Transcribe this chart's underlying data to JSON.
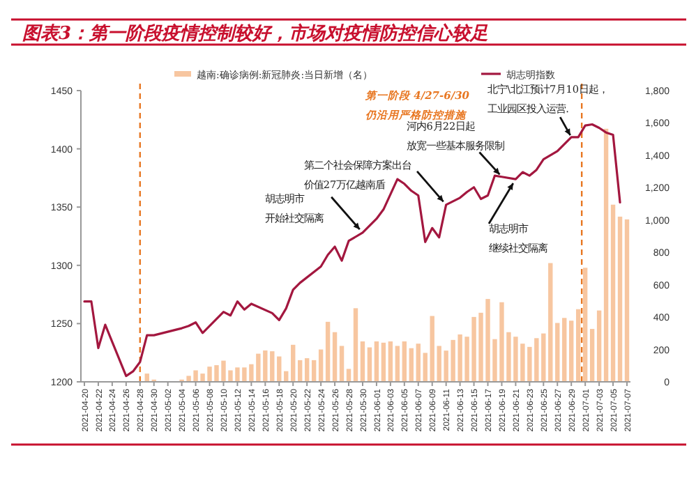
{
  "chart_data": {
    "type": "bar",
    "title": "图表3：第一阶段疫情控制较好，市场对疫情防控信心较足",
    "x": [
      "2021-04-20",
      "2021-04-21",
      "2021-04-22",
      "2021-04-23",
      "2021-04-24",
      "2021-04-25",
      "2021-04-26",
      "2021-04-27",
      "2021-04-28",
      "2021-04-29",
      "2021-04-30",
      "2021-05-01",
      "2021-05-02",
      "2021-05-03",
      "2021-05-04",
      "2021-05-05",
      "2021-05-06",
      "2021-05-07",
      "2021-05-08",
      "2021-05-09",
      "2021-05-10",
      "2021-05-11",
      "2021-05-12",
      "2021-05-13",
      "2021-05-14",
      "2021-05-15",
      "2021-05-16",
      "2021-05-17",
      "2021-05-18",
      "2021-05-19",
      "2021-05-20",
      "2021-05-21",
      "2021-05-22",
      "2021-05-23",
      "2021-05-24",
      "2021-05-25",
      "2021-05-26",
      "2021-05-27",
      "2021-05-28",
      "2021-05-29",
      "2021-05-30",
      "2021-05-31",
      "2021-06-01",
      "2021-06-02",
      "2021-06-03",
      "2021-06-04",
      "2021-06-05",
      "2021-06-06",
      "2021-06-07",
      "2021-06-08",
      "2021-06-09",
      "2021-06-10",
      "2021-06-11",
      "2021-06-12",
      "2021-06-13",
      "2021-06-14",
      "2021-06-15",
      "2021-06-16",
      "2021-06-17",
      "2021-06-18",
      "2021-06-19",
      "2021-06-20",
      "2021-06-21",
      "2021-06-22",
      "2021-06-23",
      "2021-06-24",
      "2021-06-25",
      "2021-06-26",
      "2021-06-27",
      "2021-06-28",
      "2021-06-29",
      "2021-06-30",
      "2021-07-01",
      "2021-07-02",
      "2021-07-03",
      "2021-07-04",
      "2021-07-05",
      "2021-07-06",
      "2021-07-07"
    ],
    "series": [
      {
        "name": "越南:确诊病例:新冠肺炎:当日新增（名）",
        "color": "#f7c6a0",
        "axis": "y2",
        "values": [
          null,
          null,
          null,
          null,
          null,
          null,
          null,
          null,
          null,
          51,
          14,
          null,
          null,
          null,
          14,
          37,
          71,
          51,
          94,
          103,
          131,
          71,
          89,
          89,
          109,
          174,
          194,
          189,
          157,
          66,
          229,
          134,
          146,
          134,
          200,
          371,
          307,
          222,
          80,
          455,
          250,
          213,
          250,
          242,
          250,
          222,
          250,
          208,
          236,
          179,
          407,
          222,
          193,
          259,
          293,
          279,
          401,
          427,
          512,
          264,
          492,
          307,
          279,
          236,
          216,
          270,
          299,
          734,
          364,
          395,
          378,
          449,
          705,
          327,
          441,
          1564,
          1095,
          1021,
          1004
        ]
      },
      {
        "type": "line",
        "name": "胡志明指数",
        "color": "#a3173f",
        "axis": "y",
        "values": [
          1269,
          1269,
          1229,
          1249,
          null,
          null,
          1205,
          1209,
          1217,
          1240,
          1240,
          null,
          null,
          null,
          1246,
          1248,
          1251,
          1242,
          null,
          null,
          1260,
          1257,
          1269,
          1262,
          1267,
          null,
          null,
          1259,
          1253,
          1263,
          1279,
          1285,
          null,
          null,
          1299,
          1309,
          1316,
          1304,
          1321,
          null,
          1328,
          1334,
          1340,
          1348,
          null,
          1374,
          1370,
          1364,
          1360,
          1320,
          1332,
          1324,
          1352,
          null,
          1358,
          1363,
          1367,
          1357,
          1360,
          1377,
          1376,
          null,
          1374,
          1380,
          1377,
          1382,
          1391,
          null,
          1398,
          1404,
          1410,
          1410,
          1420,
          1421,
          1418,
          1414,
          1412,
          1354,
          null
        ]
      }
    ],
    "xlim": [
      "2021-04-19T12:00",
      "2021-07-07T12:00"
    ],
    "xticks": [
      "2021-04-20",
      "2021-04-22",
      "2021-04-24",
      "2021-04-26",
      "2021-04-28",
      "2021-04-30",
      "2021-05-02",
      "2021-05-04",
      "2021-05-06",
      "2021-05-08",
      "2021-05-10",
      "2021-05-12",
      "2021-05-14",
      "2021-05-16",
      "2021-05-18",
      "2021-05-20",
      "2021-05-22",
      "2021-05-24",
      "2021-05-26",
      "2021-05-28",
      "2021-05-30",
      "2021-06-01",
      "2021-06-03",
      "2021-06-05",
      "2021-06-07",
      "2021-06-09",
      "2021-06-11",
      "2021-06-13",
      "2021-06-15",
      "2021-06-17",
      "2021-06-19",
      "2021-06-21",
      "2021-06-23",
      "2021-06-25",
      "2021-06-27",
      "2021-06-29",
      "2021-07-01",
      "2021-07-03",
      "2021-07-05",
      "2021-07-07"
    ],
    "ylim": [
      1200,
      1450
    ],
    "yticks": [
      1200,
      1250,
      1300,
      1350,
      1400,
      1450
    ],
    "y2lim": [
      0,
      1800
    ],
    "y2ticks": [
      0,
      200,
      400,
      600,
      800,
      {
        "value": 1000,
        "label": "1,000"
      },
      {
        "value": 1200,
        "label": "1,200"
      },
      {
        "value": 1400,
        "label": "1,400"
      },
      {
        "value": 1600,
        "label": "1,600"
      },
      {
        "value": 1800,
        "label": "1,800"
      }
    ],
    "ref_lines": [
      {
        "axis": "x",
        "value": "2021-04-28",
        "color": "#e87722",
        "line_style": "dashed"
      },
      {
        "axis": "x",
        "value": "2021-06-30T12:00",
        "color": "#e87722",
        "line_style": "dashed"
      }
    ],
    "annotations": [
      "第一阶段 4/27-6/30仍沿用严格防控措施",
      {
        "text": "胡志明市开始社交隔离",
        "x": "2021-05-30",
        "y": 1328
      },
      {
        "text": "第二个社会保障方案出台价值27万亿越南盾",
        "x": "2021-06-11",
        "y": 1352
      },
      {
        "text": "河内6月22日起放宽一些基本服务限制",
        "x": "2021-06-19",
        "y": 1376
      },
      {
        "text": "胡志明市继续社交隔离",
        "x": "2021-06-21",
        "y": 1374
      },
      {
        "text": "北宁\\北江预计7月10日起，工业园区投入运营.",
        "x": "2021-06-29",
        "y": 1410
      }
    ],
    "legend": "top",
    "grid": false
  }
}
